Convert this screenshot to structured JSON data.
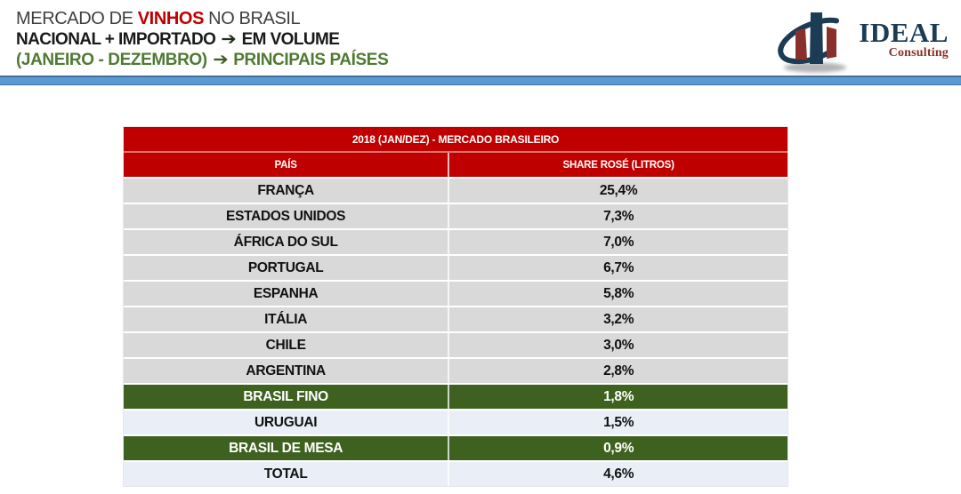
{
  "header": {
    "line1": {
      "prefix": "MERCADO DE ",
      "accent": "VINHOS",
      "suffix": " NO BRASIL"
    },
    "line2": {
      "text": "NACIONAL + IMPORTADO",
      "arrow": "➔",
      "suffix": "EM VOLUME"
    },
    "line3": {
      "text": "(JANEIRO - DEZEMBRO)",
      "arrow": "➔",
      "suffix": "PRINCIPAIS PAÍSES"
    }
  },
  "logo": {
    "name": "IDEAL",
    "tagline": "Consulting"
  },
  "table": {
    "title": "2018 (JAN/DEZ) - MERCADO BRASILEIRO",
    "columns": [
      "PAÍS",
      "SHARE ROSÉ (LITROS)"
    ],
    "rows": [
      {
        "country": "FRANÇA",
        "share": "25,4%",
        "style": "gray"
      },
      {
        "country": "ESTADOS UNIDOS",
        "share": "7,3%",
        "style": "gray"
      },
      {
        "country": "ÁFRICA DO SUL",
        "share": "7,0%",
        "style": "gray"
      },
      {
        "country": "PORTUGAL",
        "share": "6,7%",
        "style": "gray"
      },
      {
        "country": "ESPANHA",
        "share": "5,8%",
        "style": "gray"
      },
      {
        "country": "ITÁLIA",
        "share": "3,2%",
        "style": "gray"
      },
      {
        "country": "CHILE",
        "share": "3,0%",
        "style": "gray"
      },
      {
        "country": "ARGENTINA",
        "share": "2,8%",
        "style": "gray"
      },
      {
        "country": "BRASIL FINO",
        "share": "1,8%",
        "style": "green"
      },
      {
        "country": "URUGUAI",
        "share": "1,5%",
        "style": "light"
      },
      {
        "country": "BRASIL DE MESA",
        "share": "0,9%",
        "style": "green"
      },
      {
        "country": "TOTAL",
        "share": "4,6%",
        "style": "light"
      }
    ]
  },
  "colors": {
    "accent_red": "#C00000",
    "highlight_green": "#3E611F",
    "row_gray": "#D9D9D9",
    "row_light": "#EAEFF7",
    "divider_blue": "#5B9BD5",
    "divider_blue_border": "#41719C",
    "title_green": "#4E7A33",
    "logo_navy": "#1C3C55",
    "logo_maroon": "#8A2F2B"
  },
  "chart_data": {
    "type": "table",
    "title": "2018 (JAN/DEZ) - MERCADO BRASILEIRO",
    "columns": [
      "PAÍS",
      "SHARE ROSÉ (LITROS)"
    ],
    "rows": [
      {
        "pais": "FRANÇA",
        "share_pct": 25.4
      },
      {
        "pais": "ESTADOS UNIDOS",
        "share_pct": 7.3
      },
      {
        "pais": "ÁFRICA DO SUL",
        "share_pct": 7.0
      },
      {
        "pais": "PORTUGAL",
        "share_pct": 6.7
      },
      {
        "pais": "ESPANHA",
        "share_pct": 5.8
      },
      {
        "pais": "ITÁLIA",
        "share_pct": 3.2
      },
      {
        "pais": "CHILE",
        "share_pct": 3.0
      },
      {
        "pais": "ARGENTINA",
        "share_pct": 2.8
      },
      {
        "pais": "BRASIL FINO",
        "share_pct": 1.8,
        "highlight": "green"
      },
      {
        "pais": "URUGUAI",
        "share_pct": 1.5
      },
      {
        "pais": "BRASIL DE MESA",
        "share_pct": 0.9,
        "highlight": "green"
      },
      {
        "pais": "TOTAL",
        "share_pct": 4.6
      }
    ],
    "value_format": "percent-comma-decimal",
    "notes": "Slide header: MERCADO DE VINHOS NO BRASIL / NACIONAL + IMPORTADO → EM VOLUME / (JANEIRO - DEZEMBRO) → PRINCIPAIS PAÍSES"
  }
}
